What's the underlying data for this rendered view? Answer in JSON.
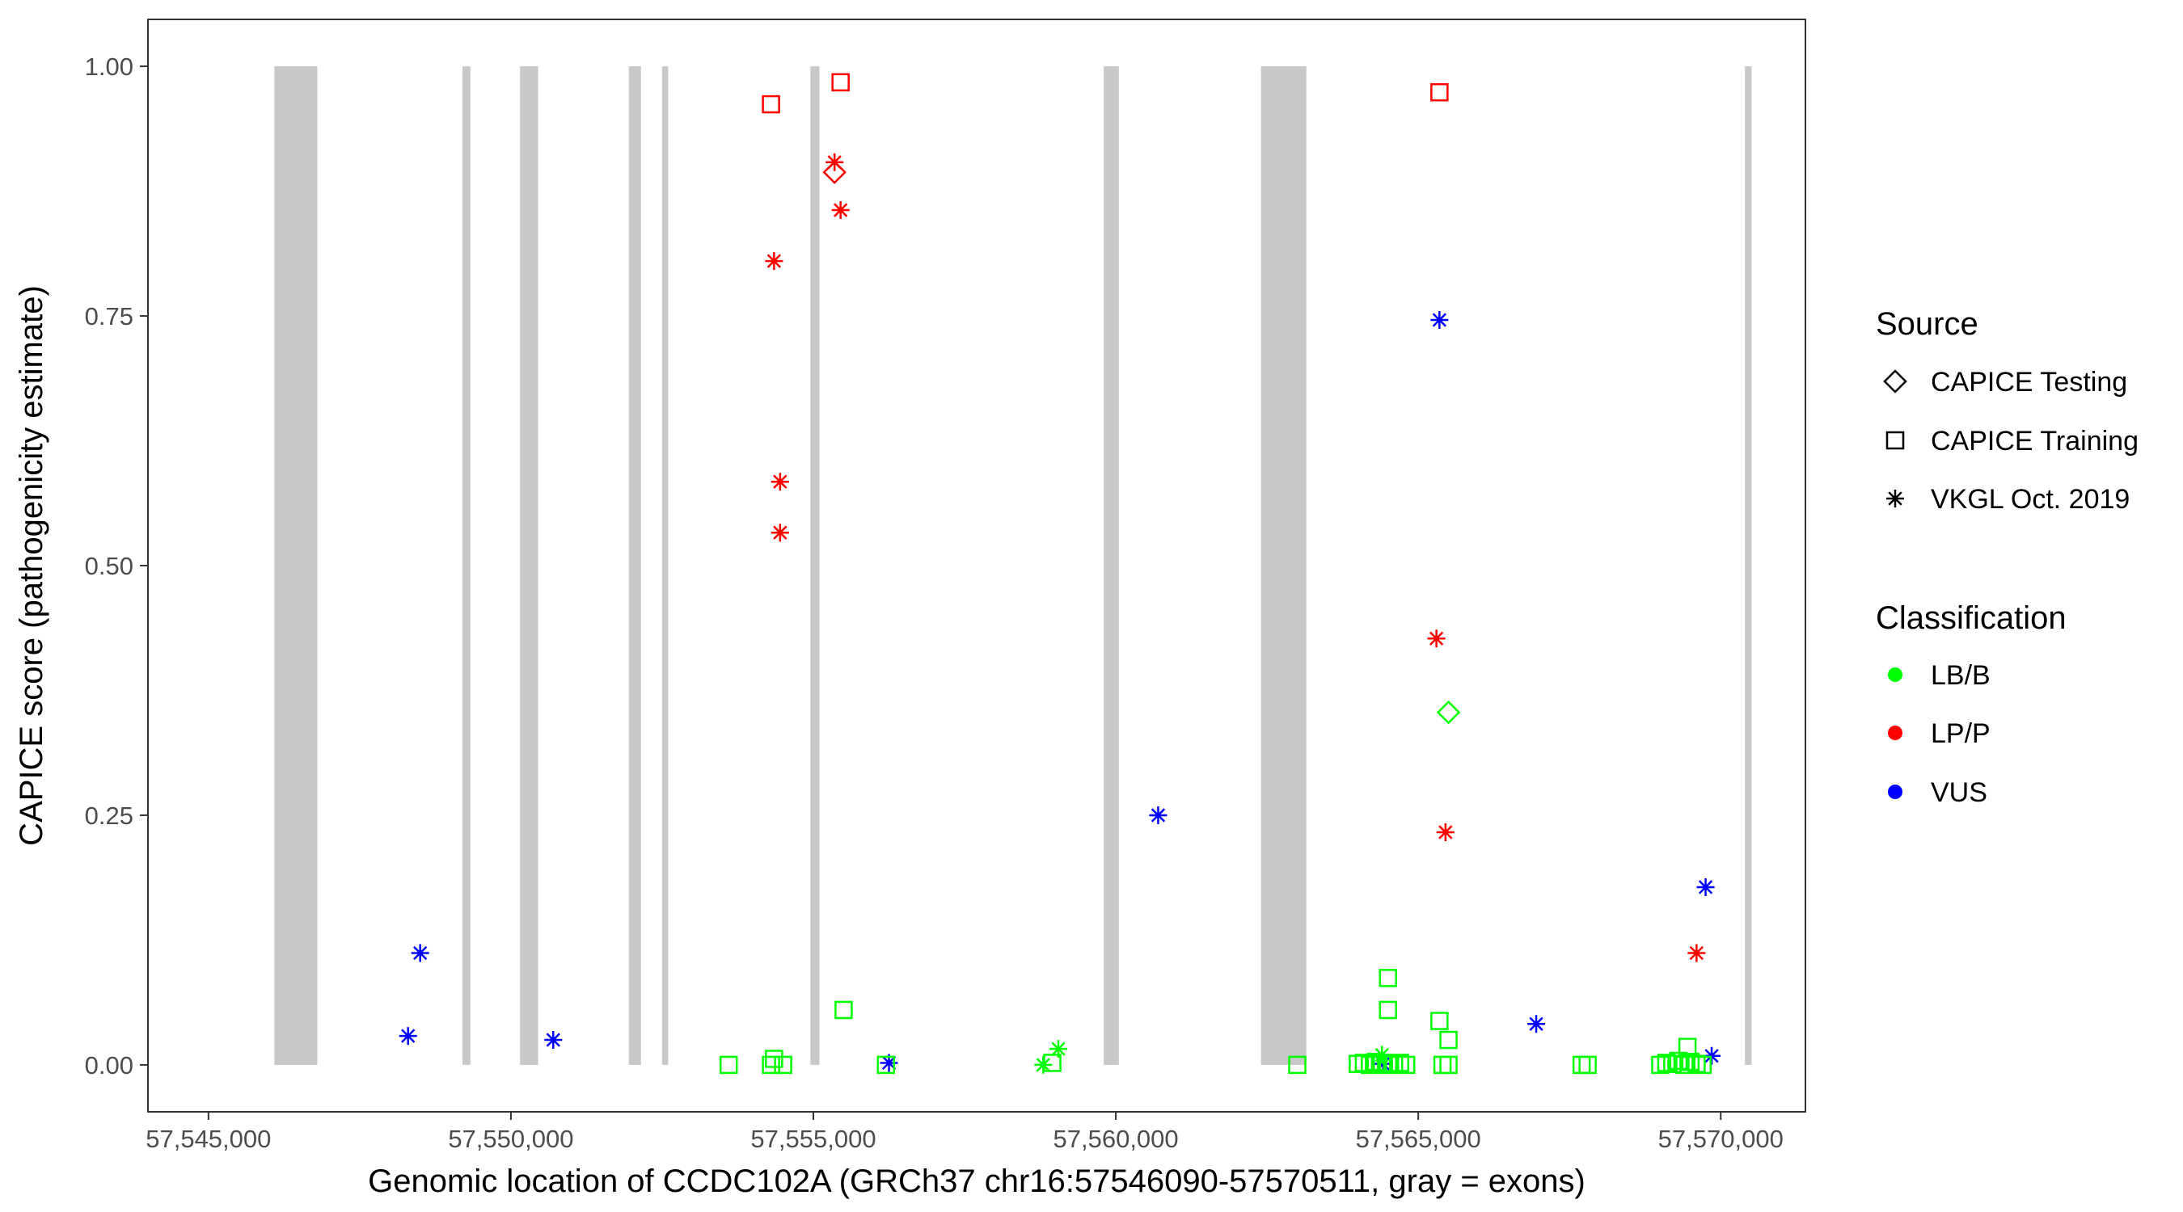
{
  "chart_data": {
    "type": "scatter",
    "xlabel": "Genomic location of CCDC102A (GRCh37 chr16:57546090-57570511, gray = exons)",
    "ylabel": "CAPICE score (pathogenicity estimate)",
    "xlim": [
      57544000,
      57571400
    ],
    "ylim": [
      -0.047,
      1.047
    ],
    "x_ticks": [
      57545000,
      57550000,
      57555000,
      57560000,
      57565000,
      57570000
    ],
    "x_tick_labels": [
      "57,545,000",
      "57,550,000",
      "57,555,000",
      "57,560,000",
      "57,565,000",
      "57,570,000"
    ],
    "y_ticks": [
      0,
      0.25,
      0.5,
      0.75,
      1
    ],
    "y_tick_labels": [
      "0.00",
      "0.25",
      "0.50",
      "0.75",
      "1.00"
    ],
    "grid": false,
    "exon_color": "#c8c8c8",
    "exons": [
      [
        57546090,
        57546800
      ],
      [
        57549200,
        57549330
      ],
      [
        57550150,
        57550450
      ],
      [
        57551950,
        57552150
      ],
      [
        57552500,
        57552600
      ],
      [
        57554950,
        57555100
      ],
      [
        57559800,
        57560050
      ],
      [
        57562400,
        57563150
      ],
      [
        57570400,
        57570511
      ]
    ],
    "legend_placement": "right",
    "source_legend": {
      "title": "Source",
      "entries": [
        {
          "label": "CAPICE Testing",
          "shape": "diamond"
        },
        {
          "label": "CAPICE Training",
          "shape": "square"
        },
        {
          "label": "VKGL Oct. 2019",
          "shape": "asterisk"
        }
      ]
    },
    "class_legend": {
      "title": "Classification",
      "entries": [
        {
          "label": "LB/B",
          "color": "#00ff00"
        },
        {
          "label": "LP/P",
          "color": "#ff0000"
        },
        {
          "label": "VUS",
          "color": "#0000ff"
        }
      ]
    },
    "series": [
      {
        "source": "VKGL Oct. 2019",
        "classification": "VUS",
        "points": [
          [
            57548500,
            0.112
          ],
          [
            57548300,
            0.029
          ],
          [
            57550700,
            0.025
          ],
          [
            57556250,
            0.002
          ],
          [
            57560700,
            0.25
          ],
          [
            57564420,
            0.001
          ],
          [
            57565350,
            0.746
          ],
          [
            57566950,
            0.041
          ],
          [
            57569750,
            0.178
          ],
          [
            57569850,
            0.009
          ]
        ]
      },
      {
        "source": "VKGL Oct. 2019",
        "classification": "LP/P",
        "points": [
          [
            57555350,
            0.904
          ],
          [
            57555450,
            0.856
          ],
          [
            57554350,
            0.805
          ],
          [
            57554450,
            0.584
          ],
          [
            57554450,
            0.533
          ],
          [
            57565300,
            0.427
          ],
          [
            57565450,
            0.233
          ],
          [
            57569600,
            0.112
          ]
        ]
      },
      {
        "source": "VKGL Oct. 2019",
        "classification": "LB/B",
        "points": [
          [
            57559050,
            0.016
          ],
          [
            57558800,
            0.0
          ],
          [
            57564400,
            0.01
          ]
        ]
      },
      {
        "source": "CAPICE Training",
        "classification": "LP/P",
        "points": [
          [
            57554300,
            0.962
          ],
          [
            57555450,
            0.984
          ],
          [
            57565350,
            0.974
          ]
        ]
      },
      {
        "source": "CAPICE Training",
        "classification": "LB/B",
        "points": [
          [
            57553600,
            0.0
          ],
          [
            57554300,
            0.0
          ],
          [
            57554500,
            0.0
          ],
          [
            57554350,
            0.006
          ],
          [
            57555500,
            0.055
          ],
          [
            57556200,
            0.0
          ],
          [
            57558950,
            0.002
          ],
          [
            57563000,
            0.0
          ],
          [
            57564000,
            0.001
          ],
          [
            57564100,
            0.002
          ],
          [
            57564200,
            0.0
          ],
          [
            57564300,
            0.003
          ],
          [
            57564400,
            0.002
          ],
          [
            57564500,
            0.0
          ],
          [
            57564600,
            0.001
          ],
          [
            57564700,
            0.002
          ],
          [
            57564800,
            0.0
          ],
          [
            57564500,
            0.087
          ],
          [
            57564500,
            0.055
          ],
          [
            57565350,
            0.044
          ],
          [
            57565500,
            0.025
          ],
          [
            57565400,
            0.0
          ],
          [
            57565500,
            0.0
          ],
          [
            57567700,
            0.0
          ],
          [
            57567800,
            0.0
          ],
          [
            57569000,
            0.0
          ],
          [
            57569100,
            0.002
          ],
          [
            57569200,
            0.001
          ],
          [
            57569300,
            0.004
          ],
          [
            57569400,
            0.0
          ],
          [
            57569450,
            0.018
          ],
          [
            57569500,
            0.003
          ],
          [
            57569600,
            0.001
          ],
          [
            57569700,
            0.0
          ]
        ]
      },
      {
        "source": "CAPICE Testing",
        "classification": "LP/P",
        "points": [
          [
            57555350,
            0.894
          ]
        ]
      },
      {
        "source": "CAPICE Testing",
        "classification": "LB/B",
        "points": [
          [
            57565500,
            0.353
          ]
        ]
      }
    ]
  }
}
